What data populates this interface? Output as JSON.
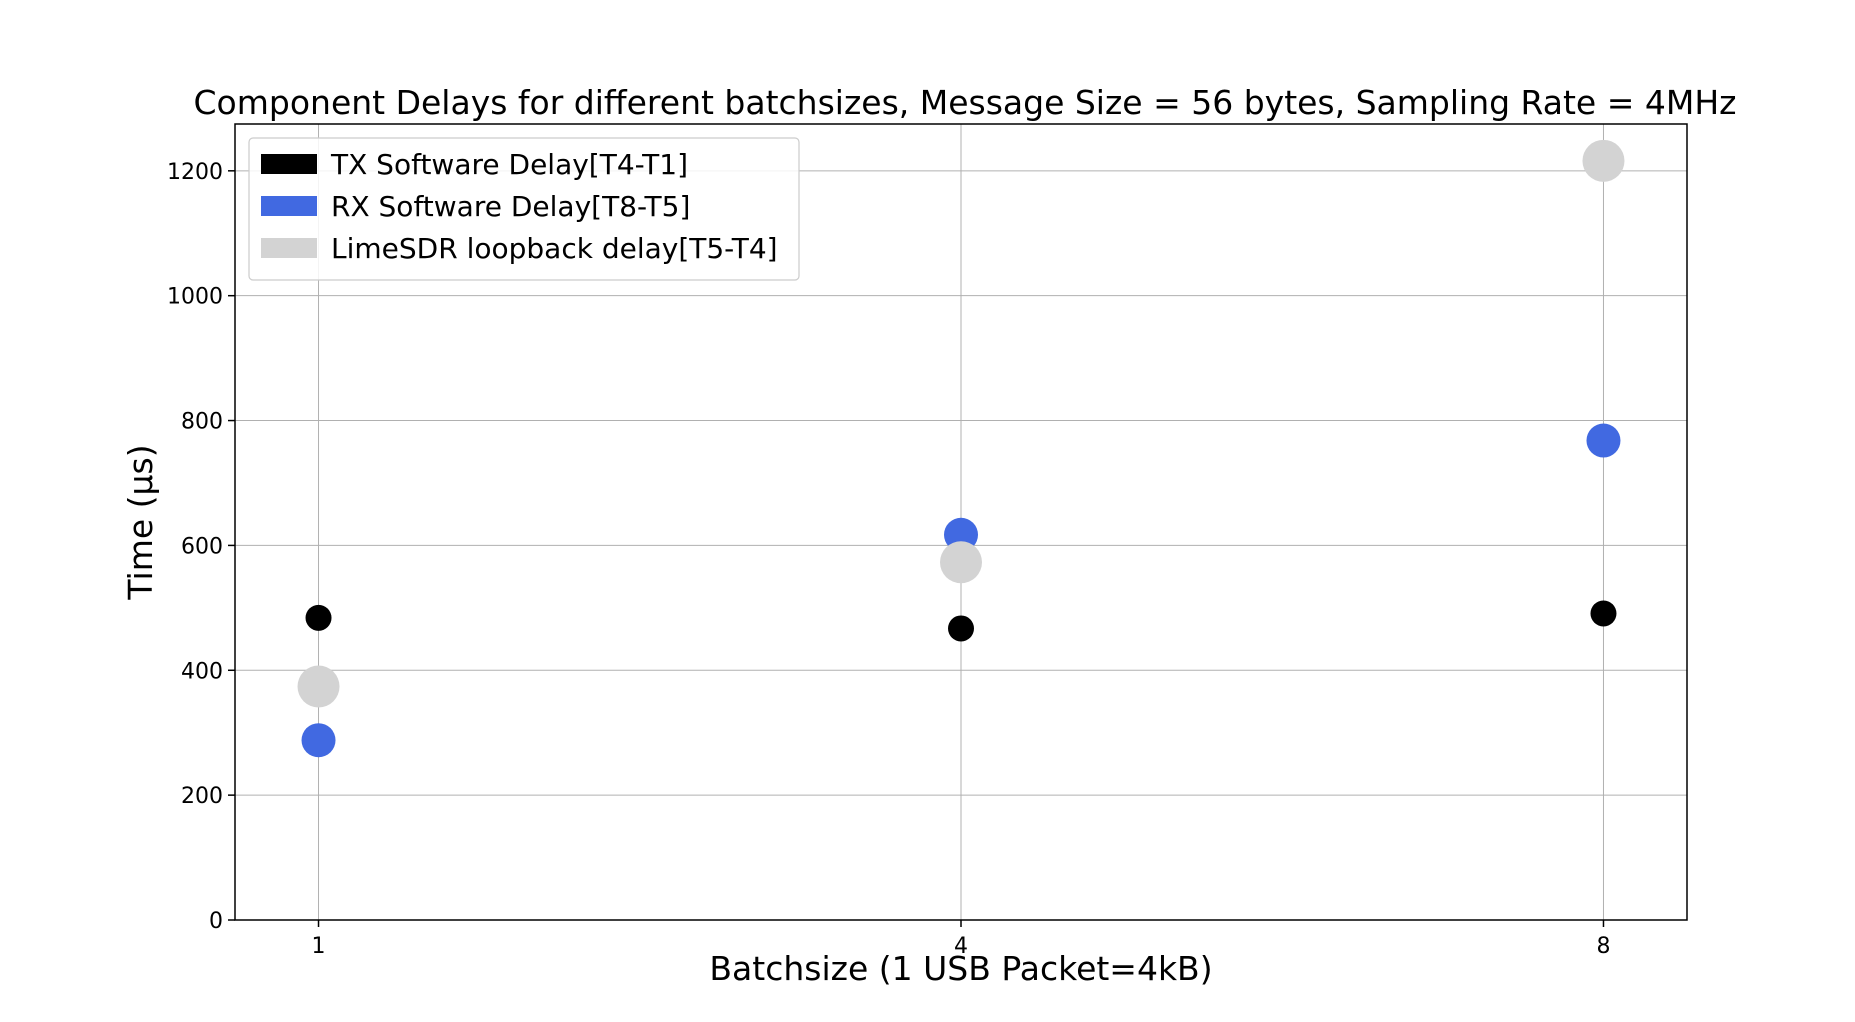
{
  "chart_data": {
    "type": "scatter",
    "title": "Component Delays for different batchsizes, Message Size = 56 bytes, Sampling Rate = 4MHz",
    "xlabel": "Batchsize (1 USB Packet=4kB)",
    "ylabel": "Time (μs)",
    "x_ticks": [
      "1",
      "4",
      "8"
    ],
    "y_ticks": [
      "0",
      "200",
      "400",
      "600",
      "800",
      "1000",
      "1200"
    ],
    "xlim": [
      -0.13,
      2.13
    ],
    "ylim": [
      0,
      1275
    ],
    "grid": true,
    "legend_position": "top-left",
    "series": [
      {
        "name": "TX Software Delay[T4-T1]",
        "color": "#000000",
        "marker_size": "small",
        "values": [
          484,
          467,
          491
        ]
      },
      {
        "name": "RX Software Delay[T8-T5]",
        "color": "#4169e1",
        "marker_size": "medium",
        "values": [
          288,
          617,
          768
        ]
      },
      {
        "name": "LimeSDR loopback delay[T5-T4]",
        "color": "#d3d3d3",
        "marker_size": "large",
        "values": [
          374,
          573,
          1216
        ]
      }
    ]
  }
}
